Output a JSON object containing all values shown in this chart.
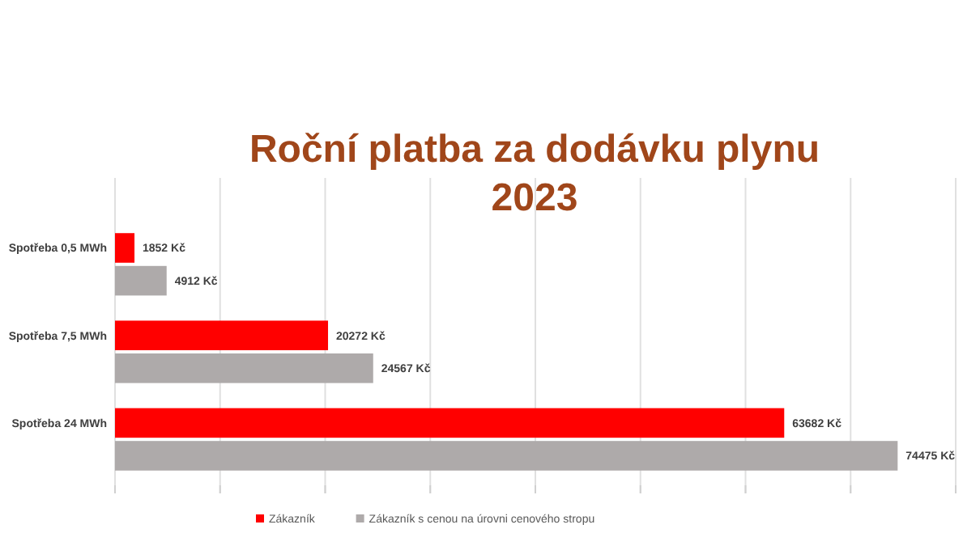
{
  "chart_data": {
    "type": "bar",
    "orientation": "horizontal",
    "title": "Roční platba za dodávku plynu 2023",
    "categories": [
      "Spotřeba 0,5 MWh",
      "Spotřeba 7,5 MWh",
      "Spotřeba 24 MWh"
    ],
    "series": [
      {
        "name": "Zákazník",
        "color": "#ff0000",
        "values": [
          1852,
          20272,
          63682
        ],
        "value_labels": [
          "1852 Kč",
          "20272 Kč",
          "63682 Kč"
        ]
      },
      {
        "name": "Zákazník s cenou na úrovni cenového stropu",
        "color": "#aeaaaa",
        "values": [
          4912,
          24567,
          74475
        ],
        "value_labels": [
          "4912 Kč",
          "24567 Kč",
          "74475 Kč"
        ]
      }
    ],
    "xlim": [
      0,
      80000
    ],
    "xticks": [
      {
        "value": 0,
        "label": null
      },
      {
        "value": 10000,
        "label": null
      },
      {
        "value": 20000,
        "label": null
      },
      {
        "value": 30000,
        "label": null
      },
      {
        "value": 40000,
        "label": null
      },
      {
        "value": 50000,
        "label": null
      },
      {
        "value": 60000,
        "label": null
      },
      {
        "value": 70000,
        "label": null
      },
      {
        "value": 80000,
        "label": null
      }
    ],
    "grid": "x",
    "legend": "bottom"
  }
}
